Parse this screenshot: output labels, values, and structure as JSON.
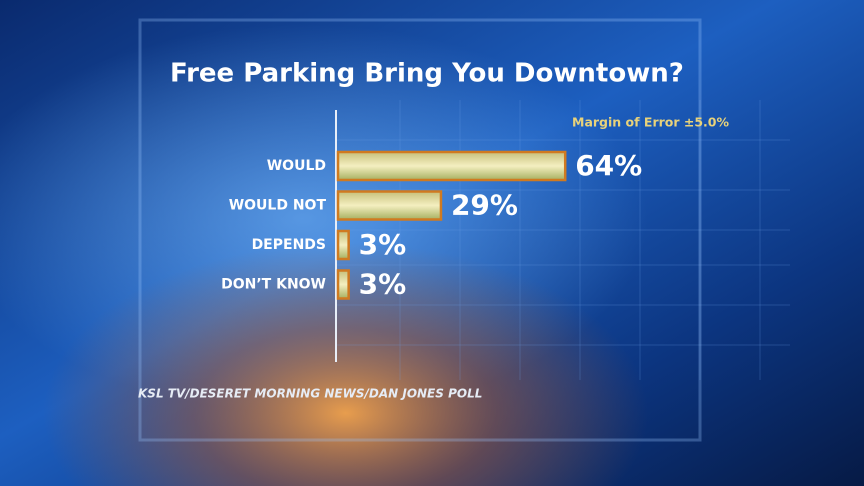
{
  "chart_data": {
    "type": "bar",
    "orientation": "horizontal",
    "title": "Free Parking Bring You Downtown?",
    "subtitle": "Margin of Error ±5.0%",
    "source": "KSL TV/DESERET MORNING NEWS/DAN JONES POLL",
    "categories": [
      "WOULD",
      "WOULD NOT",
      "DEPENDS",
      "DON’T KNOW"
    ],
    "values": [
      64,
      29,
      3,
      3
    ],
    "value_labels": [
      "64%",
      "29%",
      "3%",
      "3%"
    ],
    "color": "#dcd58e"
  }
}
